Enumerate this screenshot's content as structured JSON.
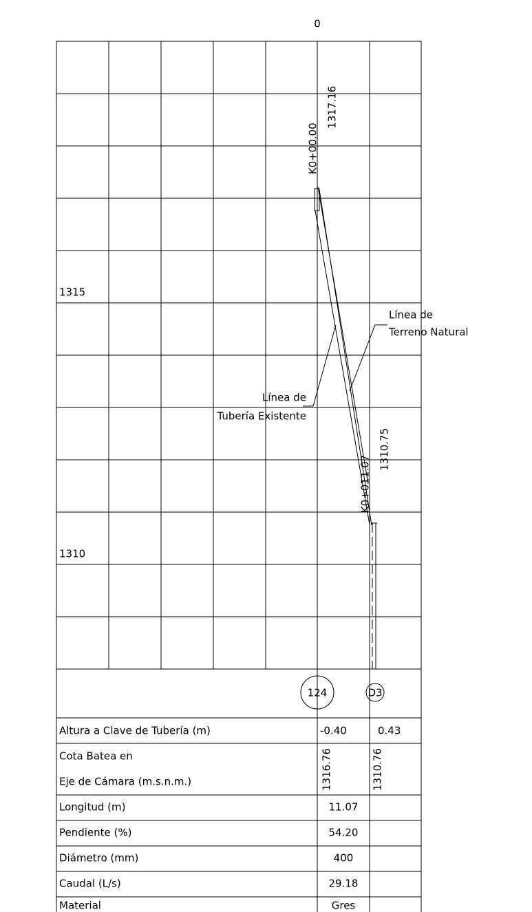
{
  "origin_label": "0",
  "elevation_labels": [
    1315,
    1310
  ],
  "stations": [
    {
      "label": "K0+00.00",
      "ground": 1317.16,
      "node": "124",
      "depth": "-0.40",
      "invert": 1316.76
    },
    {
      "label": "K0+011.07",
      "ground": 1310.75,
      "node": "D3",
      "depth": "0.43",
      "invert": 1310.76
    }
  ],
  "annotations": {
    "terrain": [
      "Línea de",
      "Terreno Natural"
    ],
    "pipe": [
      "Línea de",
      "Tubería Existente"
    ]
  },
  "table": {
    "depth_label": "Altura a Clave de Tubería (m)",
    "invert_label": [
      "Cota Batea en",
      "Eje de Cámara (m.s.n.m.)"
    ],
    "rows": [
      [
        "Longitud (m)",
        "11.07"
      ],
      [
        "Pendiente (%)",
        "54.20"
      ],
      [
        "Diámetro (mm)",
        "400"
      ],
      [
        "Caudal (L/s)",
        "29.18"
      ],
      [
        "Material",
        "Gres"
      ]
    ]
  }
}
